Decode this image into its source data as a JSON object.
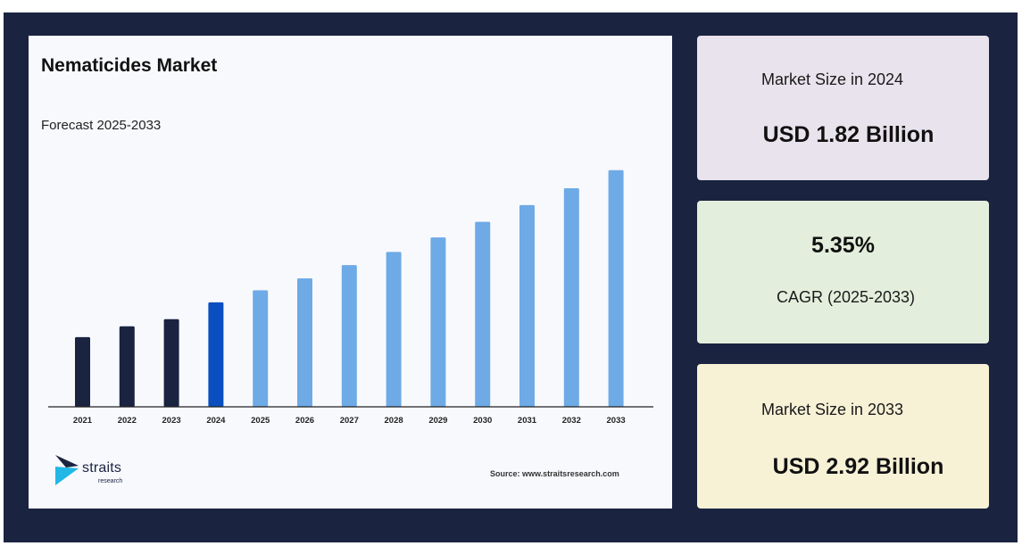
{
  "chart_panel": {
    "title": "Nematicides Market",
    "subtitle": "Forecast 2025-2033",
    "source": "Source: www.straitsresearch.com",
    "logo": {
      "word": "straits",
      "sub": "research"
    }
  },
  "cards": [
    {
      "label": "Market Size in 2024",
      "value": "USD 1.82 Billion"
    },
    {
      "value": "5.35%",
      "label": "CAGR (2025-2033)"
    },
    {
      "label": "Market Size in 2033",
      "value": "USD 2.92 Billion"
    }
  ],
  "colors": {
    "historical": "#1a2340",
    "base_year": "#0a4fbf",
    "forecast": "#6eaae6",
    "frame": "#1a2340"
  },
  "chart_data": {
    "type": "bar",
    "title": "Nematicides Market",
    "subtitle": "Forecast 2025-2033",
    "categories": [
      "2021",
      "2022",
      "2023",
      "2024",
      "2025",
      "2026",
      "2027",
      "2028",
      "2029",
      "2030",
      "2031",
      "2032",
      "2033"
    ],
    "values": [
      1.53,
      1.62,
      1.68,
      1.82,
      1.92,
      2.02,
      2.13,
      2.24,
      2.36,
      2.49,
      2.63,
      2.77,
      2.92
    ],
    "bar_groups": [
      "historical",
      "historical",
      "historical",
      "base_year",
      "forecast",
      "forecast",
      "forecast",
      "forecast",
      "forecast",
      "forecast",
      "forecast",
      "forecast",
      "forecast"
    ],
    "xlabel": "",
    "ylabel": "",
    "ylim": [
      0.95,
      3.0
    ],
    "grid": false,
    "legend": "none"
  }
}
